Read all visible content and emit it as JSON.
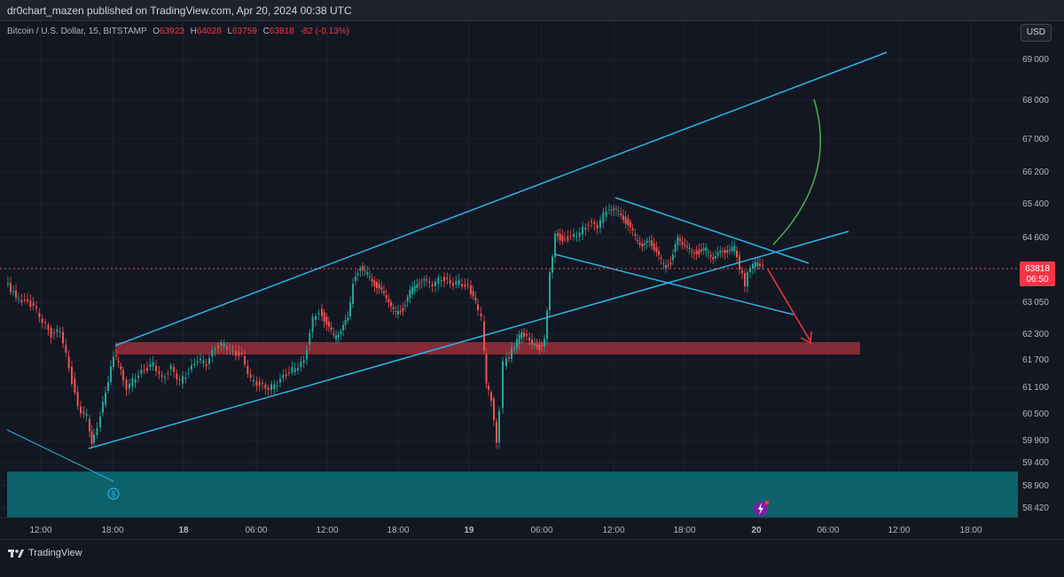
{
  "header": {
    "publisher_line": "dr0chart_mazen published on TradingView.com, Apr 20, 2024 00:38 UTC"
  },
  "symbol": {
    "name": "Bitcoin / U.S. Dollar, 15, BITSTAMP",
    "open_label": "O",
    "open": "63923",
    "high_label": "H",
    "high": "64028",
    "low_label": "L",
    "low": "63759",
    "close_label": "C",
    "close": "63818",
    "change": "-82 (-0.13%)"
  },
  "currency_button": "USD",
  "price_axis": {
    "ticks": [
      "69000",
      "68000",
      "67000",
      "66200",
      "65400",
      "64600",
      "63050",
      "62300",
      "61700",
      "61100",
      "60500",
      "59900",
      "59400",
      "58900",
      "58420"
    ],
    "current_price": "63818",
    "countdown": "06:50"
  },
  "time_axis": {
    "ticks": [
      "12:00",
      "18:00",
      "18",
      "06:00",
      "12:00",
      "18:00",
      "19",
      "06:00",
      "12:00",
      "18:00",
      "20",
      "06:00",
      "12:00",
      "18:00"
    ]
  },
  "footer": {
    "brand": "TradingView"
  },
  "colors": {
    "background": "#131722",
    "up": "#26a69a",
    "down": "#ef5350",
    "trendline": "#2bb5e8",
    "zone_red": "#b2333e",
    "zone_teal": "#0d6f78",
    "arrow_red": "#f23645",
    "curve_green": "#4caf50"
  },
  "icons": {
    "dividend_marker": "dollar-circle-icon",
    "event_marker": "lightning-icon",
    "logo": "tradingview-logo-icon"
  }
}
